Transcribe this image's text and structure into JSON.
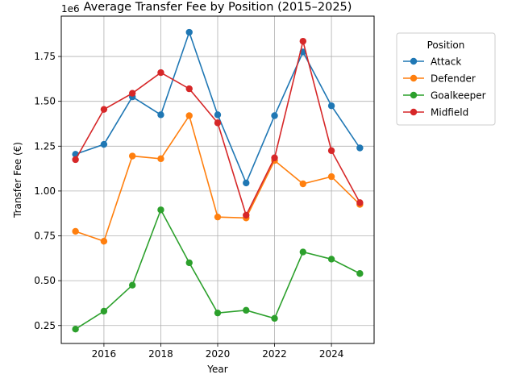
{
  "chart_data": {
    "type": "line",
    "title": "Average Transfer Fee by Position (2015–2025)",
    "xlabel": "Year",
    "ylabel": "Transfer Fee (€)",
    "y_multiplier_label": "1e6",
    "x": [
      2015,
      2016,
      2017,
      2018,
      2019,
      2020,
      2021,
      2022,
      2023,
      2024,
      2025
    ],
    "xlim": [
      2014.5,
      2025.5
    ],
    "ylim": [
      150000,
      1975000
    ],
    "x_ticks": [
      2016,
      2018,
      2020,
      2022,
      2024
    ],
    "x_tick_labels": [
      "2016",
      "2018",
      "2020",
      "2022",
      "2024"
    ],
    "y_ticks": [
      250000,
      500000,
      750000,
      1000000,
      1250000,
      1500000,
      1750000
    ],
    "y_tick_labels": [
      "0.25",
      "0.50",
      "0.75",
      "1.00",
      "1.25",
      "1.50",
      "1.75"
    ],
    "grid": true,
    "legend": {
      "title": "Position",
      "placement": "outside-right"
    },
    "series": [
      {
        "name": "Attack",
        "color": "#1f77b4",
        "values": [
          1205000,
          1260000,
          1525000,
          1425000,
          1885000,
          1425000,
          1045000,
          1420000,
          1775000,
          1475000,
          1240000
        ]
      },
      {
        "name": "Defender",
        "color": "#ff7f0e",
        "values": [
          775000,
          720000,
          1195000,
          1180000,
          1420000,
          855000,
          850000,
          1170000,
          1040000,
          1080000,
          925000
        ]
      },
      {
        "name": "Goalkeeper",
        "color": "#2ca02c",
        "values": [
          230000,
          330000,
          475000,
          895000,
          600000,
          320000,
          335000,
          290000,
          660000,
          620000,
          540000
        ]
      },
      {
        "name": "Midfield",
        "color": "#d62728",
        "values": [
          1175000,
          1455000,
          1545000,
          1660000,
          1570000,
          1380000,
          865000,
          1185000,
          1835000,
          1225000,
          935000
        ]
      }
    ]
  }
}
